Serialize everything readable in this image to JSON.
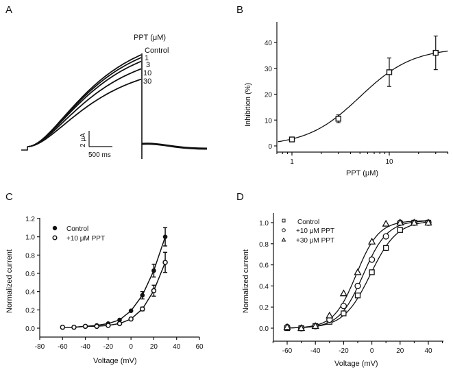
{
  "figure": {
    "panels": [
      "A",
      "B",
      "C",
      "D"
    ]
  },
  "chart_data": [
    {
      "panel": "A",
      "type": "line",
      "title": "PPT (μM)",
      "description": "Current traces at increasing PPT concentrations",
      "traces": [
        {
          "name": "Control",
          "relative_peak": 1.0
        },
        {
          "name": "1",
          "relative_peak": 0.97
        },
        {
          "name": "3",
          "relative_peak": 0.93
        },
        {
          "name": "10",
          "relative_peak": 0.85
        },
        {
          "name": "30",
          "relative_peak": 0.74
        }
      ],
      "scale_bar": {
        "y_label": "2 μA",
        "x_label": "500 ms"
      }
    },
    {
      "panel": "B",
      "type": "scatter",
      "xlabel": "PPT (μM)",
      "ylabel": "Inhibition (%)",
      "xscale": "log",
      "xlim": [
        0.7,
        40
      ],
      "ylim": [
        -2,
        47
      ],
      "xticks": [
        "1",
        "10"
      ],
      "yticks": [
        "0",
        "10",
        "20",
        "30",
        "40"
      ],
      "x": [
        1,
        3,
        10,
        30
      ],
      "y": [
        2.5,
        10.5,
        28.5,
        36
      ],
      "yerr": [
        0.6,
        1.5,
        5.5,
        6.5
      ],
      "fit": {
        "type": "hill",
        "max": 38,
        "ic50": 5,
        "n": 1.6
      },
      "marker": "open-square"
    },
    {
      "panel": "C",
      "type": "line",
      "xlabel": "Voltage (mV)",
      "ylabel": "Normalized current",
      "xlim": [
        -80,
        60
      ],
      "ylim": [
        -0.1,
        1.2
      ],
      "xticks": [
        "-80",
        "-60",
        "-40",
        "-20",
        "0",
        "20",
        "40",
        "60"
      ],
      "yticks": [
        "0.0",
        "0.2",
        "0.4",
        "0.6",
        "0.8",
        "1.0",
        "1.2"
      ],
      "x": [
        -60,
        -50,
        -40,
        -30,
        -20,
        -10,
        0,
        10,
        20,
        30
      ],
      "legend_position": "top-left",
      "series": [
        {
          "name": "Control",
          "marker": "filled-circle",
          "values": [
            0.01,
            0.01,
            0.02,
            0.03,
            0.05,
            0.09,
            0.19,
            0.36,
            0.63,
            1.0
          ],
          "err": [
            0,
            0,
            0,
            0,
            0,
            0,
            0.01,
            0.04,
            0.07,
            0.1
          ]
        },
        {
          "name": "+10 μM PPT",
          "marker": "open-circle",
          "values": [
            0.01,
            0.01,
            0.02,
            0.02,
            0.03,
            0.05,
            0.1,
            0.21,
            0.41,
            0.72
          ],
          "err": [
            0,
            0,
            0,
            0,
            0,
            0,
            0.01,
            0.02,
            0.06,
            0.11
          ]
        }
      ]
    },
    {
      "panel": "D",
      "type": "scatter",
      "xlabel": "Voltage (mV)",
      "ylabel": "Normalized current",
      "xlim": [
        -70,
        50
      ],
      "ylim": [
        -0.1,
        1.1
      ],
      "xticks": [
        "-60",
        "-40",
        "-20",
        "0",
        "20",
        "40"
      ],
      "yticks": [
        "0.0",
        "0.2",
        "0.4",
        "0.6",
        "0.8",
        "1.0"
      ],
      "x": [
        -60,
        -50,
        -40,
        -30,
        -20,
        -10,
        0,
        10,
        20,
        30,
        40
      ],
      "legend_position": "top-left",
      "series": [
        {
          "name": "Control",
          "marker": "open-square",
          "values": [
            0.0,
            0.0,
            0.02,
            0.06,
            0.14,
            0.31,
            0.53,
            0.76,
            0.93,
            1.0,
            1.0
          ],
          "fit": {
            "v_half": -1,
            "k": 9.5
          }
        },
        {
          "name": "+10 μM PPT",
          "marker": "open-circle",
          "values": [
            0.01,
            0.0,
            0.02,
            0.08,
            0.21,
            0.4,
            0.65,
            0.87,
            1.0,
            1.0,
            1.0
          ],
          "fit": {
            "v_half": -6,
            "k": 8.5
          }
        },
        {
          "name": "+30 μM PPT",
          "marker": "open-triangle",
          "values": [
            0.01,
            0.0,
            0.02,
            0.12,
            0.33,
            0.53,
            0.82,
            0.99,
            1.0,
            1.0,
            1.0
          ],
          "fit": {
            "v_half": -11,
            "k": 8
          }
        }
      ]
    }
  ]
}
